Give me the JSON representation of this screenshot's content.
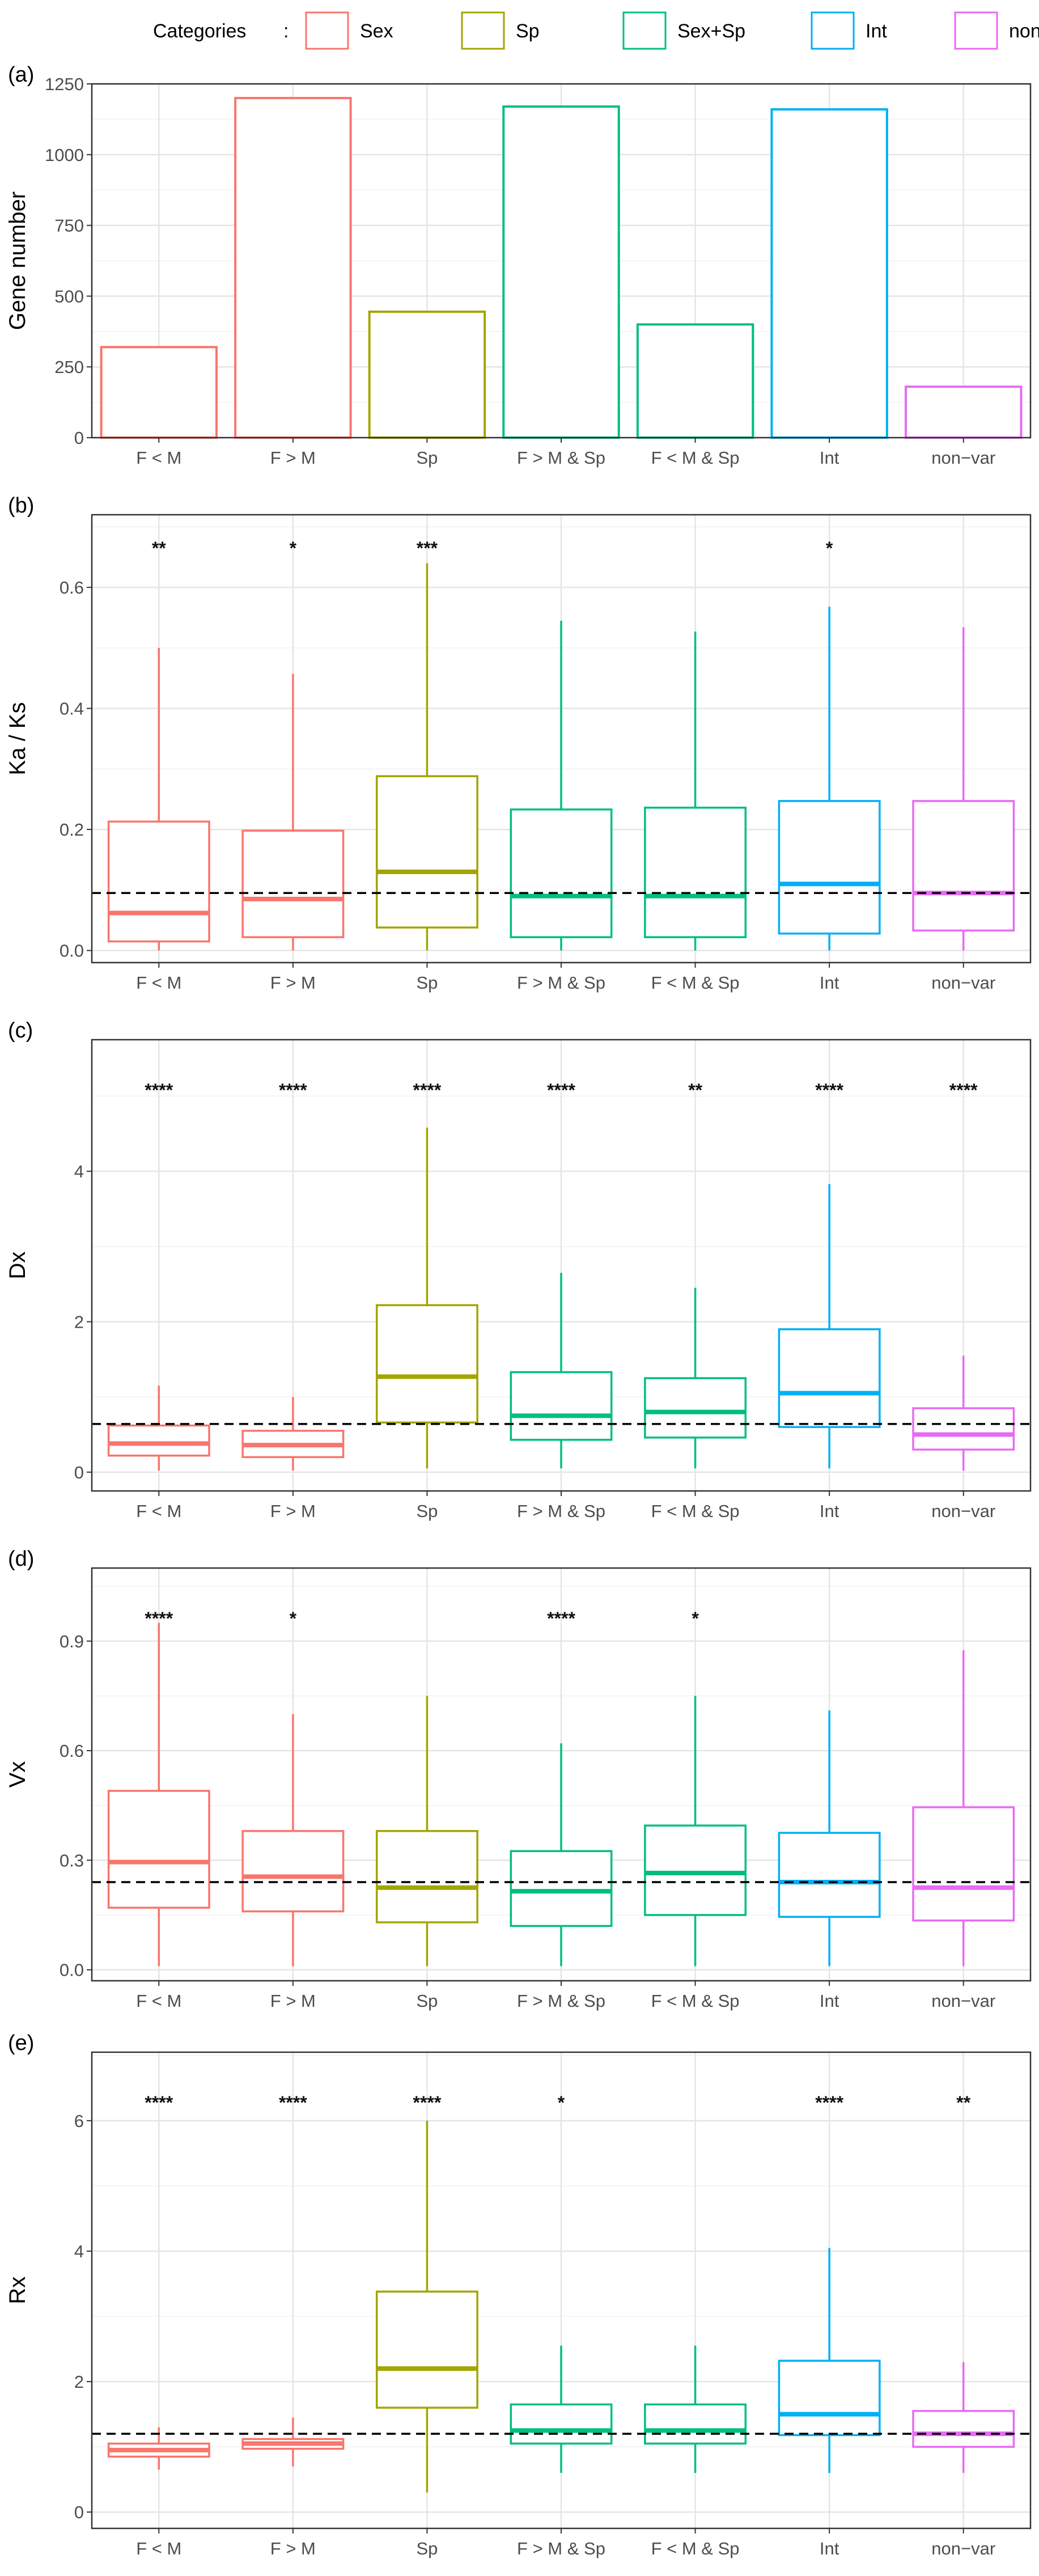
{
  "legend": {
    "title": "Categories",
    "items": [
      {
        "label": "Sex",
        "color": "#F8766D"
      },
      {
        "label": "Sp",
        "color": "#A3A500"
      },
      {
        "label": "Sex+Sp",
        "color": "#00BF7D"
      },
      {
        "label": "Int",
        "color": "#00B0F6"
      },
      {
        "label": "non−var",
        "color": "#E76BF3"
      }
    ]
  },
  "reference_line": {
    "style": "dashed",
    "color": "#000000"
  },
  "chart_data": [
    {
      "panel": "(a)",
      "type": "bar",
      "ylabel": "Gene number",
      "ylim": [
        0,
        1250
      ],
      "yticks": [
        0,
        250,
        500,
        750,
        1000,
        1250
      ],
      "categories": [
        "F < M",
        "F > M",
        "Sp",
        "F > M & Sp",
        "F < M & Sp",
        "Int",
        "non−var"
      ],
      "category_groups": [
        "Sex",
        "Sex",
        "Sp",
        "Sex+Sp",
        "Sex+Sp",
        "Int",
        "non−var"
      ],
      "values": [
        320,
        1200,
        445,
        1170,
        400,
        1160,
        180
      ]
    },
    {
      "panel": "(b)",
      "type": "box",
      "ylabel": "Ka / Ks",
      "ylim": [
        -0.02,
        0.72
      ],
      "yticks": [
        0.0,
        0.2,
        0.4,
        0.6
      ],
      "reference_value": 0.095,
      "categories": [
        "F < M",
        "F > M",
        "Sp",
        "F > M & Sp",
        "F < M & Sp",
        "Int",
        "non−var"
      ],
      "category_groups": [
        "Sex",
        "Sex",
        "Sp",
        "Sex+Sp",
        "Sex+Sp",
        "Int",
        "non−var"
      ],
      "boxes": [
        {
          "min": 0.0,
          "q1": 0.015,
          "median": 0.062,
          "q3": 0.213,
          "max": 0.5
        },
        {
          "min": 0.0,
          "q1": 0.022,
          "median": 0.085,
          "q3": 0.198,
          "max": 0.457
        },
        {
          "min": 0.0,
          "q1": 0.038,
          "median": 0.13,
          "q3": 0.288,
          "max": 0.64
        },
        {
          "min": 0.0,
          "q1": 0.022,
          "median": 0.09,
          "q3": 0.233,
          "max": 0.545
        },
        {
          "min": 0.0,
          "q1": 0.022,
          "median": 0.09,
          "q3": 0.236,
          "max": 0.527
        },
        {
          "min": 0.0,
          "q1": 0.028,
          "median": 0.11,
          "q3": 0.247,
          "max": 0.568
        },
        {
          "min": 0.0,
          "q1": 0.033,
          "median": 0.095,
          "q3": 0.247,
          "max": 0.534
        }
      ],
      "significance": [
        "**",
        "*",
        "***",
        "",
        "",
        "*",
        ""
      ]
    },
    {
      "panel": "(c)",
      "type": "box",
      "ylabel": "Dx",
      "ylim": [
        -0.25,
        5.75
      ],
      "yticks": [
        0,
        2,
        4
      ],
      "reference_value": 0.64,
      "categories": [
        "F < M",
        "F > M",
        "Sp",
        "F > M & Sp",
        "F < M & Sp",
        "Int",
        "non−var"
      ],
      "category_groups": [
        "Sex",
        "Sex",
        "Sp",
        "Sex+Sp",
        "Sex+Sp",
        "Int",
        "non−var"
      ],
      "boxes": [
        {
          "min": 0.02,
          "q1": 0.22,
          "median": 0.38,
          "q3": 0.62,
          "max": 1.15
        },
        {
          "min": 0.02,
          "q1": 0.2,
          "median": 0.36,
          "q3": 0.55,
          "max": 1.0
        },
        {
          "min": 0.05,
          "q1": 0.66,
          "median": 1.27,
          "q3": 2.22,
          "max": 4.58
        },
        {
          "min": 0.05,
          "q1": 0.43,
          "median": 0.75,
          "q3": 1.33,
          "max": 2.65
        },
        {
          "min": 0.05,
          "q1": 0.46,
          "median": 0.8,
          "q3": 1.25,
          "max": 2.45
        },
        {
          "min": 0.05,
          "q1": 0.6,
          "median": 1.05,
          "q3": 1.9,
          "max": 3.83
        },
        {
          "min": 0.02,
          "q1": 0.3,
          "median": 0.5,
          "q3": 0.85,
          "max": 1.55
        }
      ],
      "significance": [
        "****",
        "****",
        "****",
        "****",
        "**",
        "****",
        "****"
      ]
    },
    {
      "panel": "(d)",
      "type": "box",
      "ylabel": "Vx",
      "ylim": [
        -0.03,
        1.1
      ],
      "yticks": [
        0.0,
        0.3,
        0.6,
        0.9
      ],
      "reference_value": 0.24,
      "categories": [
        "F < M",
        "F > M",
        "Sp",
        "F > M & Sp",
        "F < M & Sp",
        "Int",
        "non−var"
      ],
      "category_groups": [
        "Sex",
        "Sex",
        "Sp",
        "Sex+Sp",
        "Sex+Sp",
        "Int",
        "non−var"
      ],
      "boxes": [
        {
          "min": 0.01,
          "q1": 0.17,
          "median": 0.295,
          "q3": 0.49,
          "max": 0.95
        },
        {
          "min": 0.01,
          "q1": 0.16,
          "median": 0.255,
          "q3": 0.38,
          "max": 0.7
        },
        {
          "min": 0.01,
          "q1": 0.13,
          "median": 0.225,
          "q3": 0.38,
          "max": 0.75
        },
        {
          "min": 0.01,
          "q1": 0.12,
          "median": 0.215,
          "q3": 0.325,
          "max": 0.62
        },
        {
          "min": 0.01,
          "q1": 0.15,
          "median": 0.265,
          "q3": 0.395,
          "max": 0.75
        },
        {
          "min": 0.01,
          "q1": 0.145,
          "median": 0.24,
          "q3": 0.375,
          "max": 0.71
        },
        {
          "min": 0.01,
          "q1": 0.135,
          "median": 0.225,
          "q3": 0.445,
          "max": 0.875
        }
      ],
      "significance": [
        "****",
        "*",
        "",
        "****",
        "*",
        "",
        ""
      ]
    },
    {
      "panel": "(e)",
      "type": "box",
      "ylabel": "Rx",
      "ylim": [
        -0.25,
        7.05
      ],
      "yticks": [
        0,
        2,
        4,
        6
      ],
      "reference_value": 1.2,
      "categories": [
        "F < M",
        "F > M",
        "Sp",
        "F > M & Sp",
        "F < M & Sp",
        "Int",
        "non−var"
      ],
      "category_groups": [
        "Sex",
        "Sex",
        "Sp",
        "Sex+Sp",
        "Sex+Sp",
        "Int",
        "non−var"
      ],
      "boxes": [
        {
          "min": 0.65,
          "q1": 0.85,
          "median": 0.95,
          "q3": 1.05,
          "max": 1.3
        },
        {
          "min": 0.7,
          "q1": 0.97,
          "median": 1.05,
          "q3": 1.12,
          "max": 1.45
        },
        {
          "min": 0.3,
          "q1": 1.6,
          "median": 2.2,
          "q3": 3.38,
          "max": 6.0
        },
        {
          "min": 0.6,
          "q1": 1.05,
          "median": 1.25,
          "q3": 1.65,
          "max": 2.55
        },
        {
          "min": 0.6,
          "q1": 1.05,
          "median": 1.25,
          "q3": 1.65,
          "max": 2.55
        },
        {
          "min": 0.6,
          "q1": 1.18,
          "median": 1.5,
          "q3": 2.32,
          "max": 4.05
        },
        {
          "min": 0.6,
          "q1": 1.0,
          "median": 1.2,
          "q3": 1.55,
          "max": 2.3
        }
      ],
      "significance": [
        "****",
        "****",
        "****",
        "*",
        "",
        "****",
        "**"
      ]
    }
  ]
}
